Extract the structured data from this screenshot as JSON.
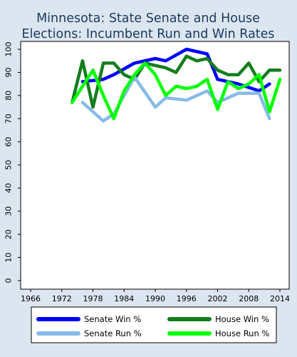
{
  "chart_data": {
    "type": "line",
    "title_lines": [
      "Minnesota: State Senate and House",
      "Elections: Incumbent Run and Win Rates"
    ],
    "xlabel": "",
    "ylabel": "",
    "xlim": [
      1966,
      2014
    ],
    "ylim": [
      0,
      100
    ],
    "x_ticks": [
      1966,
      1972,
      1978,
      1984,
      1990,
      1996,
      2002,
      2008,
      2014
    ],
    "y_ticks": [
      0,
      10,
      20,
      30,
      40,
      50,
      60,
      70,
      80,
      90,
      100
    ],
    "grid": false,
    "legend_position": "bottom",
    "series": [
      {
        "name": "Senate Win %",
        "color": "#0000ff",
        "points": [
          [
            1976,
            86
          ],
          [
            1980,
            87
          ],
          [
            1982,
            89
          ],
          [
            1986,
            94
          ],
          [
            1990,
            96
          ],
          [
            1992,
            95
          ],
          [
            1996,
            100
          ],
          [
            2000,
            98
          ],
          [
            2002,
            87
          ],
          [
            2006,
            85
          ],
          [
            2010,
            82
          ],
          [
            2012,
            85
          ]
        ]
      },
      {
        "name": "House Win %",
        "color": "#137d1d",
        "points": [
          [
            1974,
            77
          ],
          [
            1976,
            95
          ],
          [
            1978,
            75
          ],
          [
            1980,
            94
          ],
          [
            1982,
            94
          ],
          [
            1984,
            89
          ],
          [
            1986,
            87
          ],
          [
            1988,
            94
          ],
          [
            1990,
            93
          ],
          [
            1992,
            92
          ],
          [
            1994,
            90
          ],
          [
            1996,
            97
          ],
          [
            1998,
            95
          ],
          [
            2000,
            96
          ],
          [
            2002,
            91
          ],
          [
            2004,
            89
          ],
          [
            2006,
            89
          ],
          [
            2008,
            94
          ],
          [
            2010,
            86
          ],
          [
            2012,
            91
          ],
          [
            2014,
            91
          ]
        ]
      },
      {
        "name": "Senate Run %",
        "color": "#87bbe8",
        "points": [
          [
            1976,
            77
          ],
          [
            1980,
            69
          ],
          [
            1982,
            72
          ],
          [
            1986,
            88
          ],
          [
            1990,
            75
          ],
          [
            1992,
            79
          ],
          [
            1996,
            78
          ],
          [
            2000,
            82
          ],
          [
            2002,
            77
          ],
          [
            2006,
            81
          ],
          [
            2010,
            81
          ],
          [
            2012,
            70
          ]
        ]
      },
      {
        "name": "House Run %",
        "color": "#00ff00",
        "points": [
          [
            1974,
            77
          ],
          [
            1976,
            84
          ],
          [
            1978,
            91
          ],
          [
            1980,
            80
          ],
          [
            1982,
            70
          ],
          [
            1984,
            82
          ],
          [
            1986,
            89
          ],
          [
            1988,
            94
          ],
          [
            1990,
            89
          ],
          [
            1992,
            80
          ],
          [
            1994,
            84
          ],
          [
            1996,
            83
          ],
          [
            1998,
            84
          ],
          [
            2000,
            87
          ],
          [
            2002,
            74
          ],
          [
            2004,
            86
          ],
          [
            2006,
            83
          ],
          [
            2008,
            85
          ],
          [
            2010,
            89
          ],
          [
            2012,
            73
          ],
          [
            2014,
            87
          ]
        ]
      }
    ]
  }
}
